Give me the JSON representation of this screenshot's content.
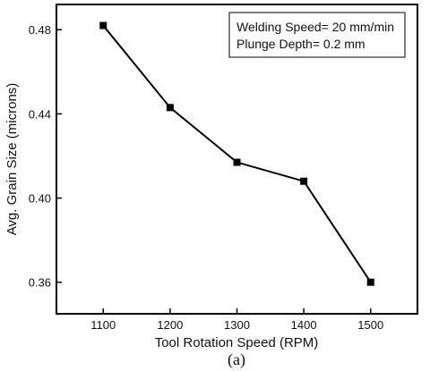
{
  "chart_data": {
    "type": "line",
    "xlabel": "Tool Rotation Speed (RPM)",
    "ylabel": "Avg. Grain Size (microns)",
    "caption": "(a)",
    "x": [
      1100,
      1200,
      1300,
      1400,
      1500
    ],
    "series": [
      {
        "values": [
          0.482,
          0.443,
          0.417,
          0.408,
          0.36
        ]
      }
    ],
    "xlim": [
      1030,
      1570
    ],
    "ylim": [
      0.345,
      0.492
    ],
    "xticks": [
      "1100",
      "1200",
      "1300",
      "1400",
      "1500"
    ],
    "yticks": [
      "0.36",
      "0.40",
      "0.44",
      "0.48"
    ],
    "ytick_values": [
      0.36,
      0.4,
      0.44,
      0.48
    ],
    "annotations": [
      "Welding Speed= 20 mm/min",
      "Plunge Depth= 0.2 mm"
    ],
    "grid": false,
    "line_color": "#000000",
    "marker": "square"
  }
}
